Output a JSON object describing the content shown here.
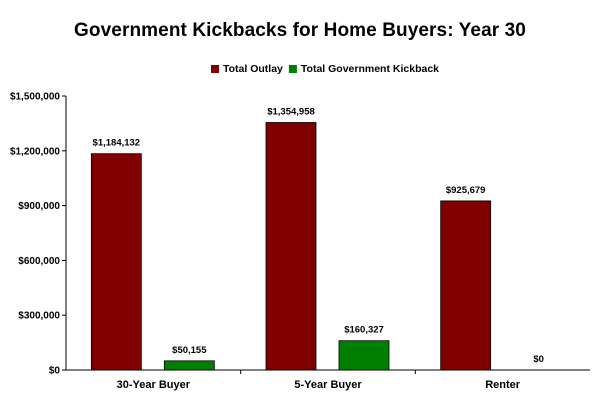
{
  "chart_data": {
    "type": "bar",
    "title": "Government Kickbacks for Home Buyers: Year 30",
    "categories": [
      "30-Year Buyer",
      "5-Year Buyer",
      "Renter"
    ],
    "series": [
      {
        "name": "Total Outlay",
        "color": "#800000",
        "values": [
          1184132,
          1354958,
          925679
        ],
        "labels": [
          "$1,184,132",
          "$1,354,958",
          "$925,679"
        ]
      },
      {
        "name": "Total Government Kickback",
        "color": "#008000",
        "values": [
          50155,
          160327,
          0
        ],
        "labels": [
          "$50,155",
          "$160,327",
          "$0"
        ]
      }
    ],
    "ylim": [
      0,
      1500000
    ],
    "yticks": [
      0,
      300000,
      600000,
      900000,
      1200000,
      1500000
    ],
    "ytick_labels": [
      "$0",
      "$300,000",
      "$600,000",
      "$900,000",
      "$1,200,000",
      "$1,500,000"
    ],
    "xlabel": "",
    "ylabel": "",
    "legend_position": "top",
    "grid": false
  }
}
